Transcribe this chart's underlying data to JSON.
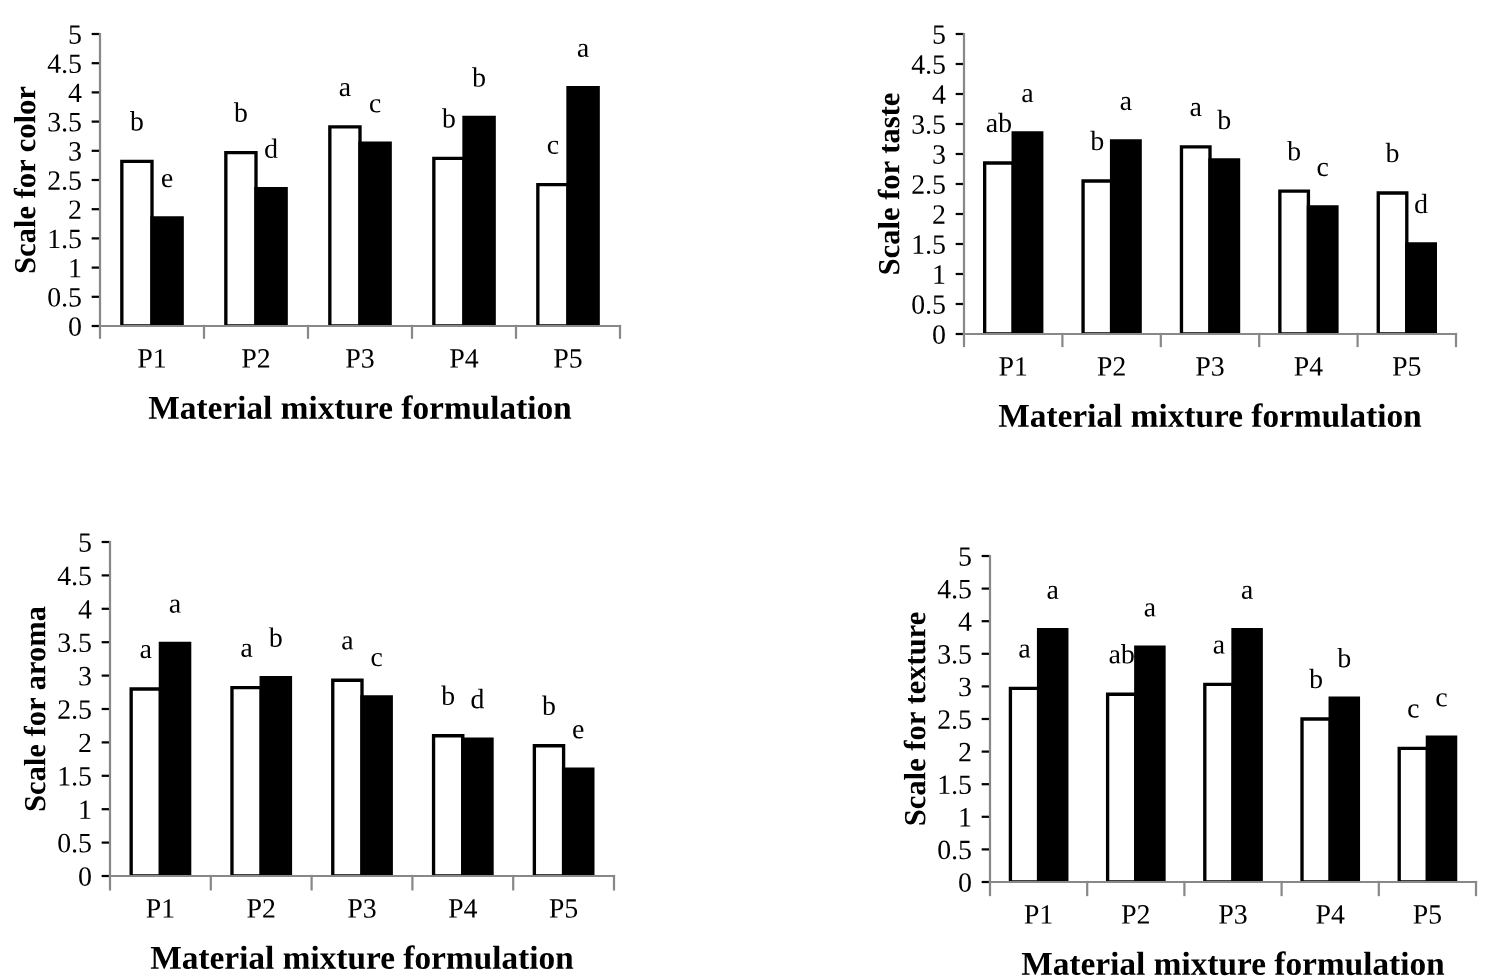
{
  "chart_data": [
    {
      "type": "bar",
      "ylabel": "Scale for color",
      "xlabel": "Material mixture formulation",
      "categories": [
        "P1",
        "P2",
        "P3",
        "P4",
        "P5"
      ],
      "ylim": [
        0,
        5
      ],
      "yticks": [
        0,
        0.5,
        1,
        1.5,
        2,
        2.5,
        3,
        3.5,
        4,
        4.5,
        5
      ],
      "grid": false,
      "legend": false,
      "series": [
        {
          "color": "#ffffff",
          "values": [
            2.82,
            2.97,
            3.41,
            2.87,
            2.42
          ],
          "value_labels": [
            "b",
            "b",
            "a",
            "b",
            "c"
          ]
        },
        {
          "color": "#000000",
          "values": [
            1.85,
            2.35,
            3.13,
            3.57,
            4.08
          ],
          "value_labels": [
            "e",
            "d",
            "c",
            "b",
            "a"
          ]
        }
      ]
    },
    {
      "type": "bar",
      "ylabel": "Scale for taste",
      "xlabel": "Material mixture formulation",
      "categories": [
        "P1",
        "P2",
        "P3",
        "P4",
        "P5"
      ],
      "ylim": [
        0,
        5
      ],
      "yticks": [
        0,
        0.5,
        1,
        1.5,
        2,
        2.5,
        3,
        3.5,
        4,
        4.5,
        5
      ],
      "grid": false,
      "legend": false,
      "series": [
        {
          "color": "#ffffff",
          "values": [
            2.85,
            2.55,
            3.12,
            2.38,
            2.35
          ],
          "value_labels": [
            "ab",
            "b",
            "a",
            "b",
            "b"
          ]
        },
        {
          "color": "#000000",
          "values": [
            3.35,
            3.22,
            2.9,
            2.12,
            1.5
          ],
          "value_labels": [
            "a",
            "a",
            "b",
            "c",
            "d"
          ]
        }
      ]
    },
    {
      "type": "bar",
      "ylabel": "Scale for aroma",
      "xlabel": "Material mixture formulation",
      "categories": [
        "P1",
        "P2",
        "P3",
        "P4",
        "P5"
      ],
      "ylim": [
        0,
        5
      ],
      "yticks": [
        0,
        0.5,
        1,
        1.5,
        2,
        2.5,
        3,
        3.5,
        4,
        4.5,
        5
      ],
      "grid": false,
      "legend": false,
      "series": [
        {
          "color": "#ffffff",
          "values": [
            2.8,
            2.82,
            2.93,
            2.1,
            1.95
          ],
          "value_labels": [
            "a",
            "a",
            "a",
            "b",
            "b"
          ]
        },
        {
          "color": "#000000",
          "values": [
            3.48,
            2.97,
            2.68,
            2.05,
            1.6
          ],
          "value_labels": [
            "a",
            "b",
            "c",
            "d",
            "e"
          ]
        }
      ]
    },
    {
      "type": "bar",
      "ylabel": "Scale for texture",
      "xlabel": "Material mixture formulation",
      "categories": [
        "P1",
        "P2",
        "P3",
        "P4",
        "P5"
      ],
      "ylim": [
        0,
        5
      ],
      "yticks": [
        0,
        0.5,
        1,
        1.5,
        2,
        2.5,
        3,
        3.5,
        4,
        4.5,
        5
      ],
      "grid": false,
      "legend": false,
      "series": [
        {
          "color": "#ffffff",
          "values": [
            2.97,
            2.88,
            3.03,
            2.5,
            2.05
          ],
          "value_labels": [
            "a",
            "ab",
            "a",
            "b",
            "c"
          ]
        },
        {
          "color": "#000000",
          "values": [
            3.87,
            3.6,
            3.87,
            2.82,
            2.22
          ],
          "value_labels": [
            "a",
            "a",
            "a",
            "b",
            "c"
          ]
        }
      ]
    }
  ]
}
